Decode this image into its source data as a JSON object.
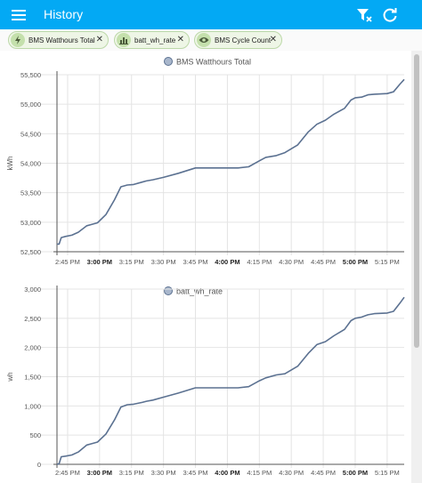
{
  "header": {
    "title": "History",
    "menu_icon": "menu-icon",
    "filter_icon": "filter-remove-icon",
    "refresh_icon": "refresh-icon"
  },
  "chips": [
    {
      "label": "BMS Watthours Total",
      "icon": "lightning-bolt-icon"
    },
    {
      "label": "batt_wh_rate",
      "icon": "chart-bar-icon"
    },
    {
      "label": "BMS Cycle Count",
      "icon": "eye-icon"
    }
  ],
  "colors": {
    "accent": "#03a9f4",
    "line": "#5b7191",
    "chip_bg": "#eef6e6",
    "chip_border": "#bcd8a8"
  },
  "x_ticks": [
    {
      "label": "2:45 PM",
      "bold": false
    },
    {
      "label": "3:00 PM",
      "bold": true
    },
    {
      "label": "3:15 PM",
      "bold": false
    },
    {
      "label": "3:30 PM",
      "bold": false
    },
    {
      "label": "3:45 PM",
      "bold": false
    },
    {
      "label": "4:00 PM",
      "bold": true
    },
    {
      "label": "4:15 PM",
      "bold": false
    },
    {
      "label": "4:30 PM",
      "bold": false
    },
    {
      "label": "4:45 PM",
      "bold": false
    },
    {
      "label": "5:00 PM",
      "bold": true
    },
    {
      "label": "5:15 PM",
      "bold": false
    }
  ],
  "chart_data": [
    {
      "type": "line",
      "legend": "BMS Watthours Total",
      "ylabel": "kWh",
      "ylim": [
        52500,
        55500
      ],
      "y_ticks": [
        "52,500",
        "53,000",
        "53,500",
        "54,000",
        "54,500",
        "55,000",
        "55,500"
      ],
      "grid": true,
      "x": [
        "2:40 PM",
        "2:41 PM",
        "2:42 PM",
        "2:44 PM",
        "2:47 PM",
        "2:50 PM",
        "2:54 PM",
        "2:56 PM",
        "2:59 PM",
        "3:03 PM",
        "3:07 PM",
        "3:10 PM",
        "3:13 PM",
        "3:16 PM",
        "3:20 PM",
        "3:22 PM",
        "3:25 PM",
        "3:30 PM",
        "3:37 PM",
        "3:45 PM",
        "3:50 PM",
        "3:54 PM",
        "3:57 PM",
        "4:00 PM",
        "4:05 PM",
        "4:10 PM",
        "4:15 PM",
        "4:18 PM",
        "4:23 PM",
        "4:27 PM",
        "4:33 PM",
        "4:38 PM",
        "4:42 PM",
        "4:46 PM",
        "4:50 PM",
        "4:55 PM",
        "4:58 PM",
        "5:00 PM",
        "5:03 PM",
        "5:06 PM",
        "5:09 PM",
        "5:15 PM",
        "5:18 PM",
        "5:21 PM",
        "5:23 PM"
      ],
      "values": [
        52630,
        52630,
        52740,
        52760,
        52780,
        52830,
        52940,
        52960,
        52990,
        53130,
        53380,
        53600,
        53630,
        53640,
        53680,
        53700,
        53720,
        53760,
        53830,
        53920,
        53920,
        53920,
        53920,
        53920,
        53920,
        53940,
        54040,
        54100,
        54130,
        54180,
        54310,
        54530,
        54660,
        54730,
        54830,
        54930,
        55070,
        55110,
        55120,
        55160,
        55170,
        55180,
        55210,
        55340,
        55420
      ]
    },
    {
      "type": "line",
      "legend": "batt_wh_rate",
      "ylabel": "wh",
      "ylim": [
        0,
        3000
      ],
      "y_ticks": [
        "0",
        "500",
        "1,000",
        "1,500",
        "2,000",
        "2,500",
        "3,000"
      ],
      "grid": true,
      "x": [
        "2:40 PM",
        "2:41 PM",
        "2:42 PM",
        "2:44 PM",
        "2:47 PM",
        "2:50 PM",
        "2:54 PM",
        "2:56 PM",
        "2:59 PM",
        "3:03 PM",
        "3:07 PM",
        "3:10 PM",
        "3:13 PM",
        "3:16 PM",
        "3:20 PM",
        "3:22 PM",
        "3:25 PM",
        "3:30 PM",
        "3:37 PM",
        "3:45 PM",
        "3:50 PM",
        "3:54 PM",
        "3:57 PM",
        "4:00 PM",
        "4:05 PM",
        "4:10 PM",
        "4:15 PM",
        "4:18 PM",
        "4:23 PM",
        "4:27 PM",
        "4:33 PM",
        "4:38 PM",
        "4:42 PM",
        "4:46 PM",
        "4:50 PM",
        "4:55 PM",
        "4:58 PM",
        "5:00 PM",
        "5:03 PM",
        "5:06 PM",
        "5:09 PM",
        "5:15 PM",
        "5:18 PM",
        "5:21 PM",
        "5:23 PM"
      ],
      "values": [
        0,
        10,
        130,
        140,
        160,
        210,
        330,
        350,
        380,
        520,
        760,
        980,
        1020,
        1030,
        1060,
        1080,
        1100,
        1150,
        1220,
        1310,
        1310,
        1310,
        1310,
        1310,
        1310,
        1330,
        1430,
        1480,
        1530,
        1550,
        1680,
        1900,
        2050,
        2100,
        2200,
        2310,
        2460,
        2500,
        2520,
        2560,
        2580,
        2590,
        2620,
        2760,
        2860
      ]
    }
  ]
}
